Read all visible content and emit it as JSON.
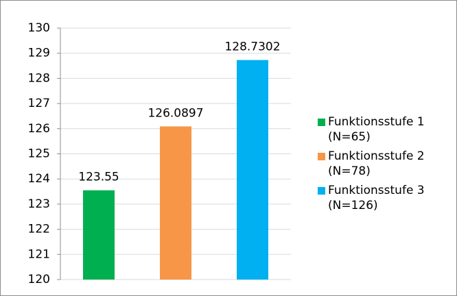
{
  "chart_data": {
    "type": "bar",
    "categories": [
      null
    ],
    "series": [
      {
        "name": "Funktionsstufe 1 (N=65)",
        "color": "#00b050",
        "values": [
          123.55
        ]
      },
      {
        "name": "Funktionsstufe 2 (N=78)",
        "color": "#f79646",
        "values": [
          126.0897
        ]
      },
      {
        "name": "Funktionsstufe 3 (N=126)",
        "color": "#00b0f0",
        "values": [
          128.7302
        ]
      }
    ],
    "ylim": [
      120,
      130
    ],
    "yticks": [
      120,
      121,
      122,
      123,
      124,
      125,
      126,
      127,
      128,
      129,
      130
    ],
    "grid": true,
    "legend": "right"
  }
}
